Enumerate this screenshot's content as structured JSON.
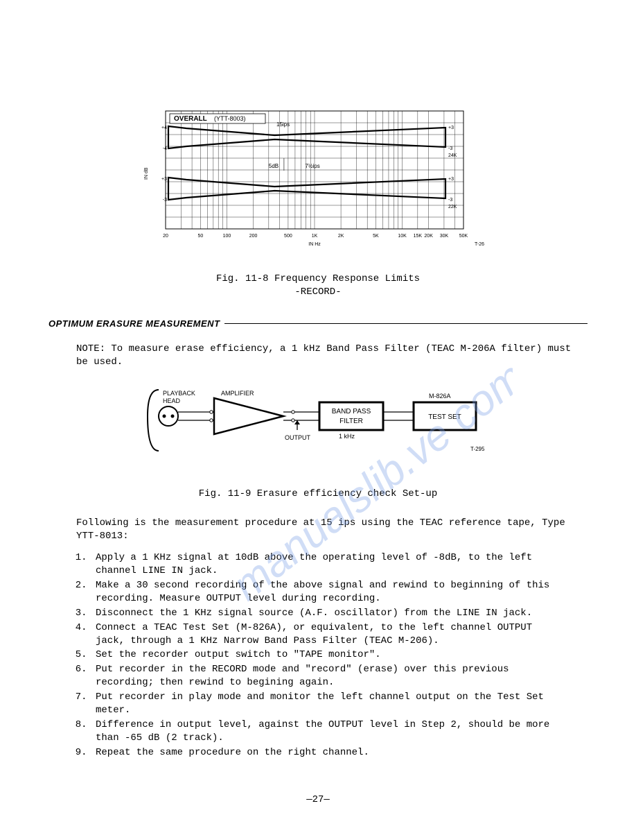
{
  "chart": {
    "type": "frequency-response-limits",
    "title_label": "OVERALL",
    "title_paren": "(YTT-8003)",
    "top_speed_label": "15ips",
    "bottom_speed_label": "7½ips",
    "db_sublabel": "5dB",
    "y_axis_label": "IN dB",
    "x_axis_label": "IN Hz",
    "corner_code": "T-26",
    "x_ticks": [
      "20",
      "50",
      "100",
      "200",
      "500",
      "1K",
      "2K",
      "5K",
      "10K",
      "15K",
      "20K",
      "30K",
      "50K"
    ],
    "bands": [
      {
        "name": "upper",
        "left_top": "+4",
        "left_bot": "-4",
        "right_top": "+3",
        "right_bot": "-3",
        "right_end": "24K",
        "y": 22
      },
      {
        "name": "lower",
        "left_top": "+3",
        "left_bot": "-3",
        "right_top": "+3",
        "right_bot": "-3",
        "right_end": "22K",
        "y": 96
      }
    ],
    "grid_color": "#000000",
    "band_stroke": "#000000",
    "band_stroke_width": 2.2,
    "background": "#ffffff",
    "tick_fontsize": 7,
    "label_fontsize": 7
  },
  "fig8_caption_line1": "Fig. 11-8 Frequency Response Limits",
  "fig8_caption_line2": "-RECORD-",
  "section_title": "OPTIMUM ERASURE MEASUREMENT",
  "note_text": "NOTE: To measure erase efficiency, a 1 kHz Band Pass Filter (TEAC M-206A filter) must be used.",
  "diagram": {
    "type": "block-diagram",
    "blocks": {
      "playback_head": "PLAYBACK\nHEAD",
      "amplifier": "AMPLIFIER",
      "bpf_top": "BAND PASS",
      "bpf_bot": "FILTER",
      "bpf_sub": "1 kHz",
      "test_set": "TEST SET",
      "test_set_model": "M-826A",
      "output_label": "OUTPUT"
    },
    "corner_code": "T-295",
    "stroke": "#000000",
    "fill": "#ffffff",
    "label_fontsize": 10
  },
  "fig9_caption": "Fig. 11-9 Erasure efficiency check Set-up",
  "intro_para": "Following is the measurement procedure at 15 ips using the TEAC reference tape, Type YTT-8013:",
  "steps": [
    "Apply a 1 KHz signal at 10dB above the operating level of -8dB, to the left channel LINE IN jack.",
    "Make a 30 second recording of the above signal and rewind to beginning of this recording. Measure OUTPUT level during recording.",
    "Disconnect the 1 KHz signal source (A.F. oscillator) from the LINE IN jack.",
    "Connect a TEAC Test Set (M-826A), or equivalent, to the left channel OUTPUT jack, through a 1 KHz Narrow Band Pass Filter (TEAC M-206).",
    "Set the recorder output switch to \"TAPE monitor\".",
    "Put recorder in the RECORD mode and \"record\" (erase) over this previous recording; then rewind to begining again.",
    "Put recorder in play mode and monitor the left channel output on  the Test Set meter.",
    "Difference in output level, against the OUTPUT level in Step 2, should be more than -65 dB (2 track).",
    "Repeat the same procedure on the right channel."
  ],
  "page_number": "—27—",
  "watermark_text": "manualslib.ve com"
}
